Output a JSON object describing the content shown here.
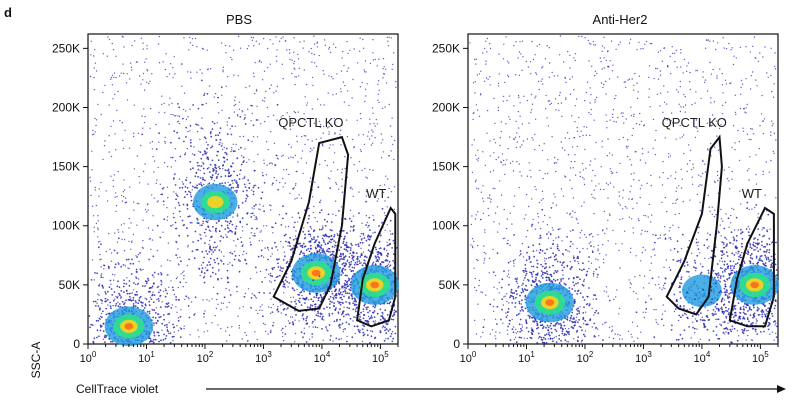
{
  "panel_letter": "d",
  "y_axis_label": "SSC-A",
  "x_axis_label": "CellTrace violet",
  "chart_data": [
    {
      "type": "scatter",
      "subtype": "flow-cytometry density plot",
      "title": "PBS",
      "x_scale": "log",
      "xlim": [
        1,
        200000
      ],
      "ylim": [
        0,
        262144
      ],
      "x_ticks": [
        {
          "value": 1,
          "base": "10",
          "exp": "0"
        },
        {
          "value": 10,
          "base": "10",
          "exp": "1"
        },
        {
          "value": 100,
          "base": "10",
          "exp": "2"
        },
        {
          "value": 1000,
          "base": "10",
          "exp": "3"
        },
        {
          "value": 10000,
          "base": "10",
          "exp": "4"
        },
        {
          "value": 100000,
          "base": "10",
          "exp": "5"
        }
      ],
      "y_ticks": [
        {
          "value": 0,
          "label": "0"
        },
        {
          "value": 50000,
          "label": "50K"
        },
        {
          "value": 100000,
          "label": "100K"
        },
        {
          "value": 150000,
          "label": "150K"
        },
        {
          "value": 200000,
          "label": "200K"
        },
        {
          "value": 250000,
          "label": "250K"
        }
      ],
      "populations": [
        {
          "x_center": 5,
          "y_center": 15000,
          "density": "high"
        },
        {
          "x_center": 150,
          "y_center": 120000,
          "density": "medium"
        },
        {
          "x_center": 8000,
          "y_center": 60000,
          "density": "high"
        },
        {
          "x_center": 80000,
          "y_center": 50000,
          "density": "high"
        }
      ],
      "gates": [
        {
          "label": "QPCTL KO",
          "points": [
            [
              1500,
              40000
            ],
            [
              3000,
              70000
            ],
            [
              6000,
              120000
            ],
            [
              9000,
              170000
            ],
            [
              22000,
              175000
            ],
            [
              28000,
              160000
            ],
            [
              22000,
              100000
            ],
            [
              14000,
              50000
            ],
            [
              9000,
              30000
            ],
            [
              4000,
              28000
            ]
          ]
        },
        {
          "label": "WT",
          "points": [
            [
              40000,
              20000
            ],
            [
              50000,
              55000
            ],
            [
              80000,
              85000
            ],
            [
              150000,
              115000
            ],
            [
              180000,
              110000
            ],
            [
              180000,
              40000
            ],
            [
              140000,
              20000
            ],
            [
              70000,
              15000
            ]
          ]
        }
      ]
    },
    {
      "type": "scatter",
      "subtype": "flow-cytometry density plot",
      "title": "Anti-Her2",
      "x_scale": "log",
      "xlim": [
        1,
        200000
      ],
      "ylim": [
        0,
        262144
      ],
      "x_ticks": [
        {
          "value": 1,
          "base": "10",
          "exp": "0"
        },
        {
          "value": 10,
          "base": "10",
          "exp": "1"
        },
        {
          "value": 100,
          "base": "10",
          "exp": "2"
        },
        {
          "value": 1000,
          "base": "10",
          "exp": "3"
        },
        {
          "value": 10000,
          "base": "10",
          "exp": "4"
        },
        {
          "value": 100000,
          "base": "10",
          "exp": "5"
        }
      ],
      "y_ticks": [
        {
          "value": 0,
          "label": "0"
        },
        {
          "value": 50000,
          "label": "50K"
        },
        {
          "value": 100000,
          "label": "100K"
        },
        {
          "value": 150000,
          "label": "150K"
        },
        {
          "value": 200000,
          "label": "200K"
        },
        {
          "value": 250000,
          "label": "250K"
        }
      ],
      "populations": [
        {
          "x_center": 25,
          "y_center": 35000,
          "density": "high"
        },
        {
          "x_center": 10000,
          "y_center": 45000,
          "density": "low"
        },
        {
          "x_center": 80000,
          "y_center": 50000,
          "density": "high"
        }
      ],
      "gates": [
        {
          "label": "QPCTL KO",
          "points": [
            [
              2500,
              40000
            ],
            [
              5000,
              70000
            ],
            [
              10000,
              110000
            ],
            [
              14000,
              165000
            ],
            [
              20000,
              175000
            ],
            [
              22000,
              150000
            ],
            [
              18000,
              100000
            ],
            [
              13000,
              40000
            ],
            [
              8000,
              25000
            ],
            [
              4000,
              30000
            ]
          ]
        },
        {
          "label": "WT",
          "points": [
            [
              30000,
              20000
            ],
            [
              40000,
              55000
            ],
            [
              60000,
              85000
            ],
            [
              120000,
              115000
            ],
            [
              170000,
              110000
            ],
            [
              170000,
              40000
            ],
            [
              120000,
              15000
            ],
            [
              60000,
              15000
            ]
          ]
        }
      ]
    }
  ],
  "colors": {
    "low": "#2b2bb0",
    "mid": "#1e9be0",
    "high": "#2ee08a",
    "peak": "#ffd21e",
    "core": "#ff6a1a"
  }
}
